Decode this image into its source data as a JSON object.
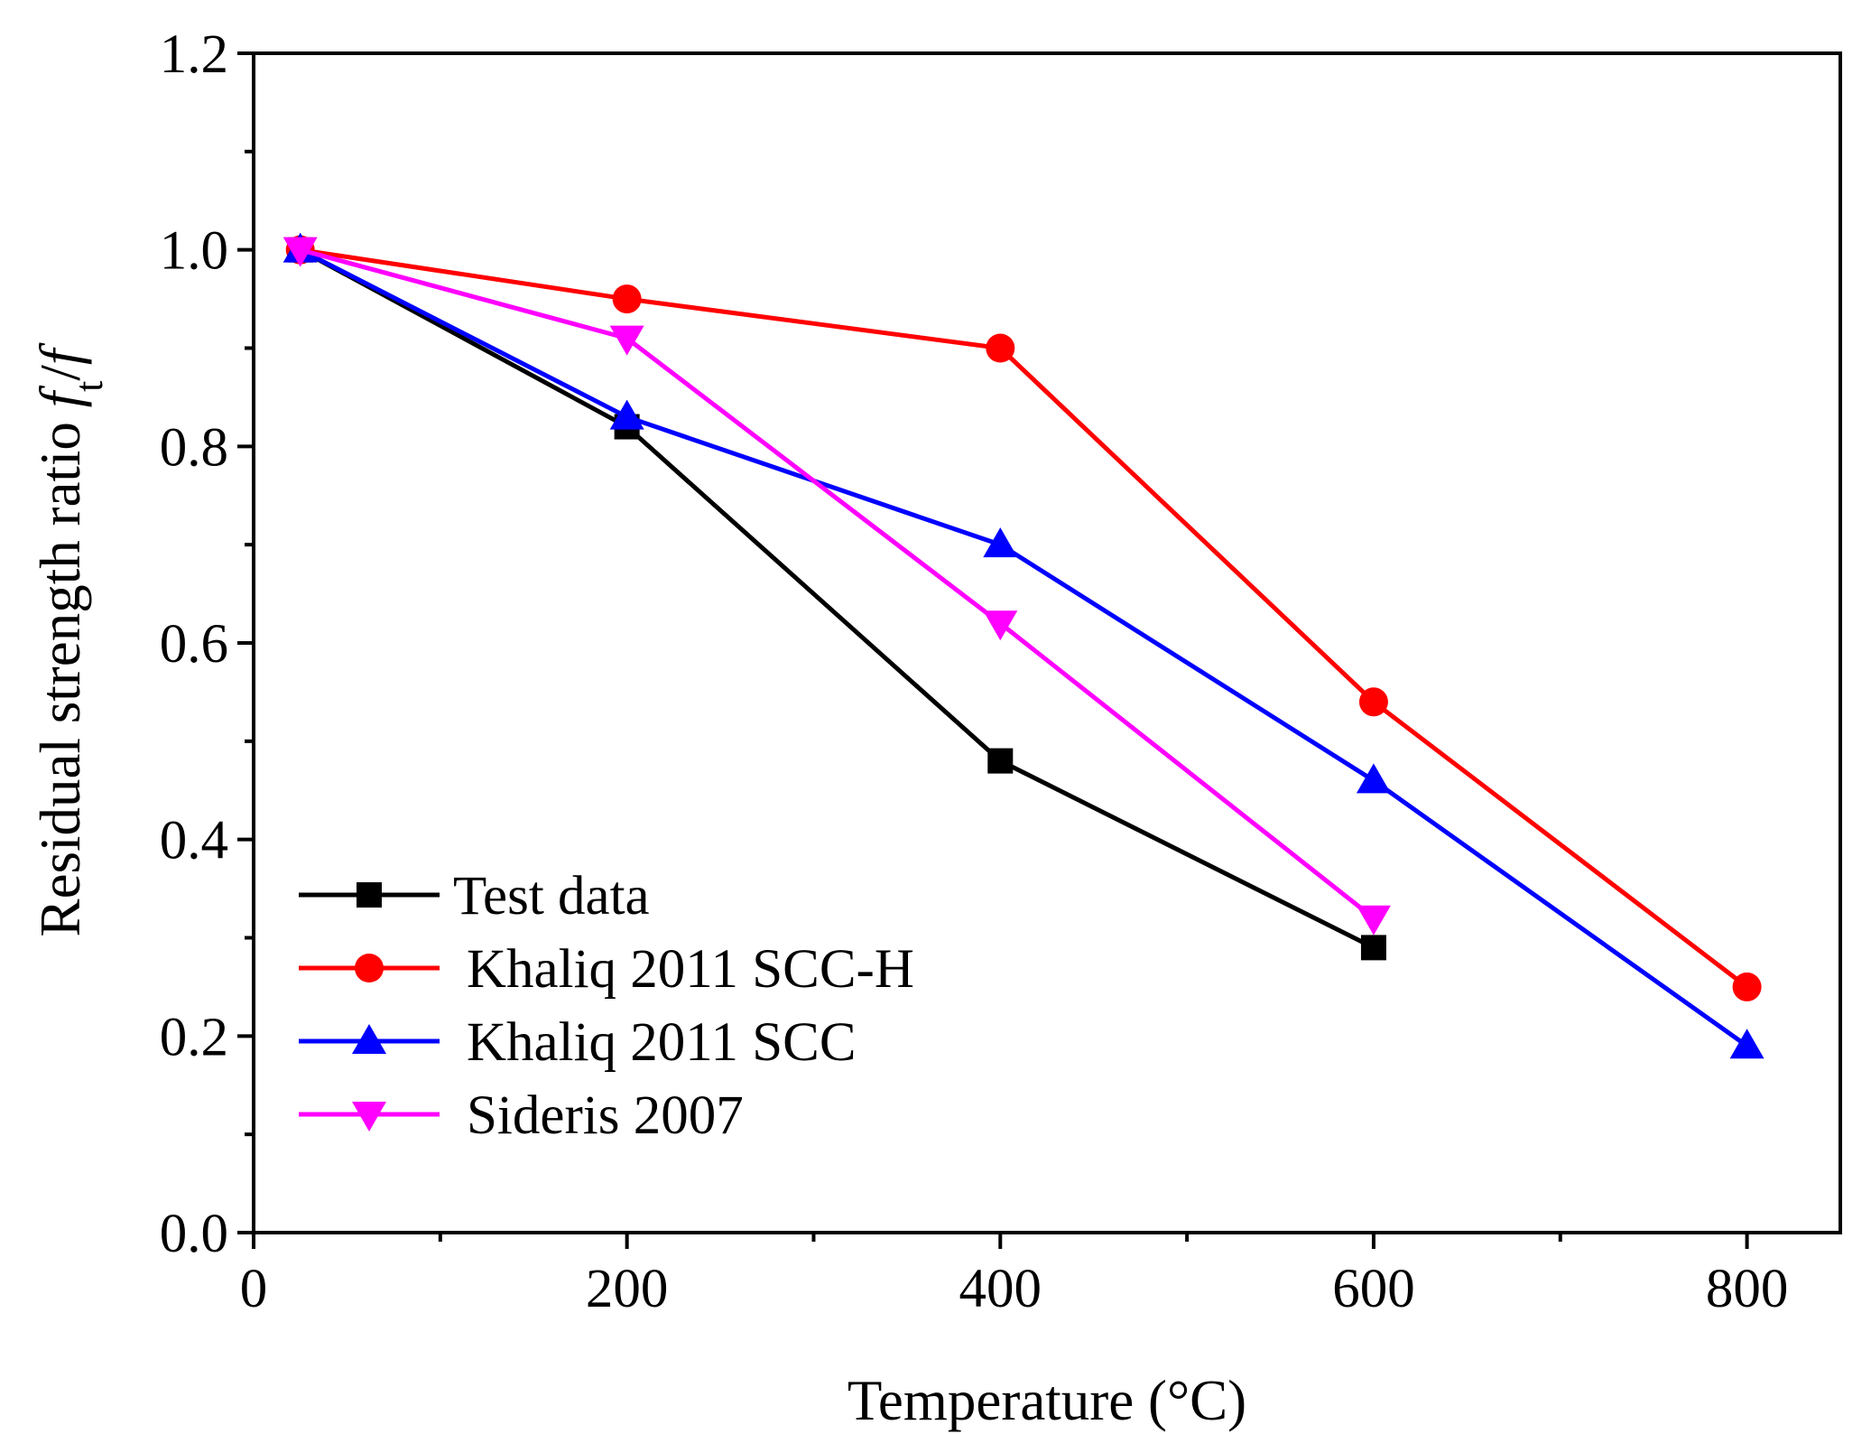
{
  "chart_data": {
    "type": "line",
    "title": "",
    "xlabel": "Temperature (°C)",
    "ylabel": {
      "text": "Residual strength ratio ",
      "var1": "f",
      "var1_sub": "t",
      "sep": "/",
      "var2": "f"
    },
    "xlim": [
      0,
      850
    ],
    "ylim": [
      0.0,
      1.2
    ],
    "x_ticks": [
      0,
      200,
      400,
      600,
      800
    ],
    "x_tick_labels": [
      "0",
      "200",
      "400",
      "600",
      "800"
    ],
    "x_minor_ticks": [
      100,
      300,
      500,
      700
    ],
    "y_ticks": [
      0.0,
      0.2,
      0.4,
      0.6,
      0.8,
      1.0,
      1.2
    ],
    "y_tick_labels": [
      "0.0",
      "0.2",
      "0.4",
      "0.6",
      "0.8",
      "1.0",
      "1.2"
    ],
    "y_minor_ticks": [
      0.1,
      0.3,
      0.5,
      0.7,
      0.9,
      1.1
    ],
    "grid": false,
    "legend_position": "bottom-left",
    "series": [
      {
        "name": "Test data",
        "color": "#000000",
        "marker": "square",
        "x": [
          25,
          200,
          400,
          600
        ],
        "values": [
          1.0,
          0.82,
          0.48,
          0.29
        ]
      },
      {
        "name": "Khaliq 2011 SCC-H",
        "color": "#ff0000",
        "marker": "circle",
        "x": [
          25,
          200,
          400,
          600,
          800
        ],
        "values": [
          1.0,
          0.95,
          0.9,
          0.54,
          0.25
        ]
      },
      {
        "name": "Khaliq 2011 SCC",
        "color": "#0000ff",
        "marker": "triangle-up",
        "x": [
          25,
          200,
          400,
          600,
          800
        ],
        "values": [
          1.0,
          0.83,
          0.7,
          0.46,
          0.19
        ]
      },
      {
        "name": "Sideris 2007",
        "color": "#ff00ff",
        "marker": "triangle-down",
        "x": [
          25,
          200,
          400,
          600
        ],
        "values": [
          1.0,
          0.91,
          0.62,
          0.32
        ]
      }
    ]
  }
}
